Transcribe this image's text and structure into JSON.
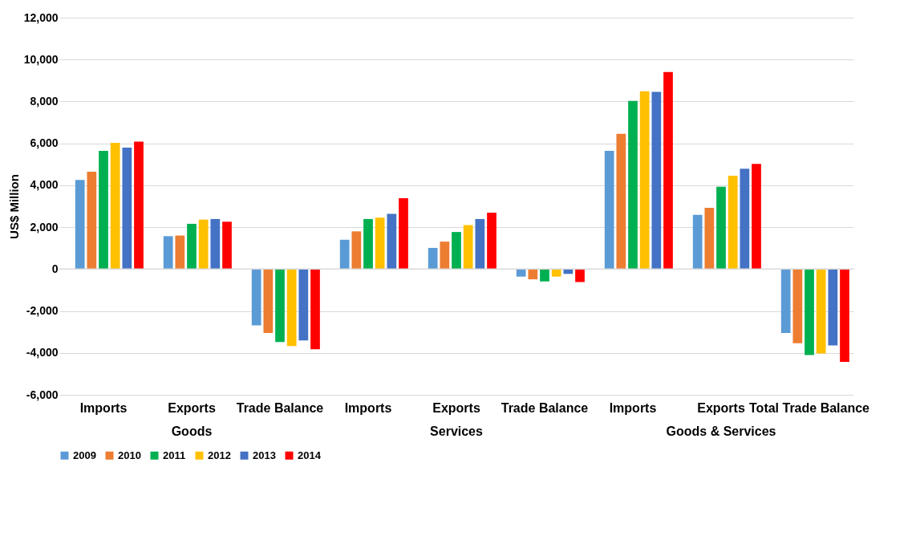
{
  "chart_data": {
    "type": "bar",
    "ylabel": "US$ Million",
    "categories": [
      "Imports",
      "Exports",
      "Trade Balance",
      "Imports",
      "Exports",
      "Trade Balance",
      "Imports",
      "Exports",
      "Total Trade Balance"
    ],
    "annotations": [
      "Goods",
      "Services",
      "Goods & Services"
    ],
    "series": [
      {
        "name": "2009",
        "color": "#5b9bd5",
        "values": [
          4250,
          1570,
          -2690,
          1400,
          1010,
          -360,
          5640,
          2590,
          -3050
        ]
      },
      {
        "name": "2010",
        "color": "#ed7d31",
        "values": [
          4650,
          1600,
          -3050,
          1800,
          1310,
          -490,
          6460,
          2920,
          -3540
        ]
      },
      {
        "name": "2011",
        "color": "#00b050",
        "values": [
          5640,
          2160,
          -3480,
          2390,
          1770,
          -590,
          8030,
          3930,
          -4100
        ]
      },
      {
        "name": "2012",
        "color": "#ffc000",
        "values": [
          6030,
          2360,
          -3670,
          2450,
          2100,
          -360,
          8490,
          4460,
          -4030
        ]
      },
      {
        "name": "2013",
        "color": "#4472c4",
        "values": [
          5800,
          2390,
          -3410,
          2640,
          2390,
          -230,
          8460,
          4790,
          -3640
        ]
      },
      {
        "name": "2014",
        "color": "#ff0000",
        "values": [
          6080,
          2260,
          -3830,
          3380,
          2690,
          -620,
          9410,
          5020,
          -4430
        ]
      }
    ],
    "ylim": [
      -6000,
      12000
    ],
    "yticks": [
      {
        "value": -6000,
        "label": "-6,000"
      },
      {
        "value": -4000,
        "label": "-4,000"
      },
      {
        "value": -2000,
        "label": "-2,000"
      },
      0,
      {
        "value": 2000,
        "label": "2,000"
      },
      {
        "value": 4000,
        "label": "4,000"
      },
      {
        "value": 6000,
        "label": "6,000"
      },
      {
        "value": 8000,
        "label": "8,000"
      },
      {
        "value": 10000,
        "label": "10,000"
      },
      {
        "value": 12000,
        "label": "12,000"
      }
    ],
    "grid": "y",
    "legend": "bottom"
  }
}
